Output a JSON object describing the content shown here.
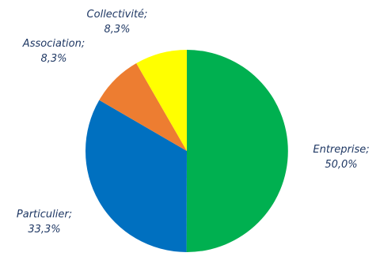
{
  "chart_data": {
    "type": "pie",
    "title": "",
    "start_angle_deg": 0,
    "direction": "clockwise",
    "slices": [
      {
        "label": "Entreprise",
        "value": 50.0,
        "value_text": "50,0%",
        "color": "#00b050"
      },
      {
        "label": "Particulier",
        "value": 33.3,
        "value_text": "33,3%",
        "color": "#0070c0"
      },
      {
        "label": "Association",
        "value": 8.3,
        "value_text": "8,3%",
        "color": "#ed7d31"
      },
      {
        "label": "Collectivité",
        "value": 8.3,
        "value_text": "8,3%",
        "color": "#ffff00"
      }
    ],
    "label_separator": ";"
  }
}
